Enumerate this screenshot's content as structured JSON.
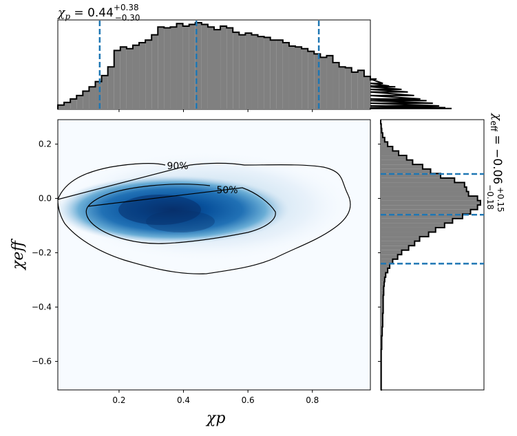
{
  "chart_data": {
    "type": "heatmap",
    "title": "",
    "xlabel": "χp",
    "ylabel": "χeff",
    "xlim": [
      0.01,
      0.98
    ],
    "ylim": [
      -0.705,
      0.29
    ],
    "x_ticks": [
      0.2,
      0.4,
      0.6,
      0.8
    ],
    "y_ticks": [
      0.2,
      0.0,
      -0.2,
      -0.4,
      -0.6
    ],
    "x_tick_labels": [
      "0.2",
      "0.4",
      "0.6",
      "0.8"
    ],
    "y_tick_labels": [
      "0.2",
      "0.0",
      "−0.2",
      "−0.4",
      "−0.6"
    ],
    "colormap": "Blues",
    "density_peak": {
      "x": 0.36,
      "y": -0.06
    },
    "contours": [
      {
        "label": "90%",
        "label_position": {
          "x": 0.37,
          "y": 0.12
        }
      },
      {
        "label": "50%",
        "label_position": {
          "x": 0.53,
          "y": 0.035
        }
      }
    ],
    "marginal_x": {
      "parameter": "χ",
      "parameter_sub": "p",
      "median": "0.44",
      "upper": "+0.38",
      "lower": "−0.30",
      "median_value": 0.44,
      "lower_value": 0.14,
      "upper_value": 0.82,
      "bin_edges_start": 0.01,
      "bin_width": 0.0194,
      "heights": [
        0.05,
        0.08,
        0.12,
        0.16,
        0.21,
        0.26,
        0.32,
        0.39,
        0.49,
        0.68,
        0.72,
        0.7,
        0.74,
        0.77,
        0.8,
        0.86,
        0.95,
        0.94,
        0.95,
        0.99,
        0.96,
        0.98,
        1.0,
        0.98,
        0.95,
        0.92,
        0.96,
        0.94,
        0.89,
        0.86,
        0.88,
        0.86,
        0.84,
        0.83,
        0.8,
        0.8,
        0.77,
        0.73,
        0.72,
        0.7,
        0.67,
        0.64,
        0.6,
        0.62,
        0.54,
        0.49,
        0.48,
        0.43,
        0.45,
        0.38,
        0.34,
        0.35,
        0.3,
        0.27,
        0.26,
        0.23,
        0.2,
        0.16,
        0.12,
        0.1,
        0.07,
        0.04,
        0.02,
        0.01
      ]
    },
    "marginal_y": {
      "parameter": "χ",
      "parameter_sub": "eff",
      "median": "−0.06",
      "upper": "+0.15",
      "lower": "−0.18",
      "median_value": -0.06,
      "lower_value": -0.24,
      "upper_value": 0.09,
      "bin_edges_start": -0.705,
      "bin_width": 0.0166,
      "heights": [
        0.005,
        0.005,
        0.005,
        0.005,
        0.005,
        0.005,
        0.005,
        0.005,
        0.005,
        0.01,
        0.01,
        0.01,
        0.015,
        0.015,
        0.02,
        0.02,
        0.02,
        0.025,
        0.025,
        0.025,
        0.025,
        0.03,
        0.03,
        0.035,
        0.04,
        0.05,
        0.07,
        0.09,
        0.12,
        0.17,
        0.21,
        0.28,
        0.34,
        0.39,
        0.48,
        0.55,
        0.64,
        0.72,
        0.82,
        0.9,
        0.97,
        1.0,
        0.97,
        0.88,
        0.86,
        0.84,
        0.74,
        0.6,
        0.5,
        0.42,
        0.32,
        0.26,
        0.18,
        0.12,
        0.07,
        0.04,
        0.02,
        0.01,
        0.005,
        0.0
      ]
    }
  }
}
